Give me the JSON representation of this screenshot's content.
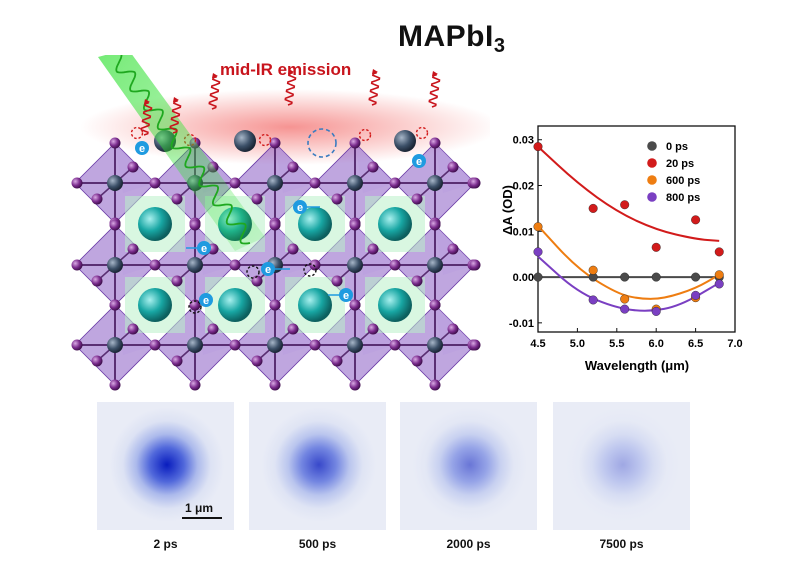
{
  "title": {
    "main": "MAPbI",
    "sub": "3"
  },
  "emission_label": "mid-IR emission",
  "electron_symbol": "e",
  "scale_bar_label": "1 μm",
  "images": [
    {
      "label": "2 ps",
      "intensity": 1.0
    },
    {
      "label": "500 ps",
      "intensity": 0.78
    },
    {
      "label": "2000 ps",
      "intensity": 0.55
    },
    {
      "label": "7500 ps",
      "intensity": 0.3
    }
  ],
  "colors": {
    "emission_red": "#c8141c",
    "pump_green": "#3ddc3d",
    "octahedra_purple": "#8a5cc4",
    "cation_teal": "#1aa3a0",
    "electron_blue": "#1f9be0",
    "spot_blue": "#1e2fc0"
  },
  "chart_data": {
    "type": "scatter",
    "xlabel": "Wavelength (μm)",
    "ylabel": "ΔA (OD)",
    "xlim": [
      4.5,
      7.0
    ],
    "ylim": [
      -0.012,
      0.033
    ],
    "xticks": [
      "4.5",
      "5.0",
      "5.5",
      "6.0",
      "6.5",
      "7.0"
    ],
    "yticks": [
      "0.03",
      "0.02",
      "0.01",
      "0.00",
      "-0.01"
    ],
    "legend_position": "top-right",
    "series": [
      {
        "name": "0 ps",
        "color": "#4a4a4a",
        "x": [
          4.5,
          5.2,
          5.6,
          6.0,
          6.5,
          6.8
        ],
        "y": [
          0.0,
          0.0,
          0.0,
          0.0,
          0.0,
          0.0
        ],
        "fit": [
          [
            4.5,
            0.0
          ],
          [
            6.8,
            0.0
          ]
        ]
      },
      {
        "name": "20 ps",
        "color": "#d21b1b",
        "x": [
          4.5,
          5.2,
          5.6,
          6.0,
          6.5,
          6.8
        ],
        "y": [
          0.0285,
          0.015,
          0.0158,
          0.0065,
          0.0125,
          0.0055
        ],
        "fit": [
          [
            4.5,
            0.0285
          ],
          [
            5.0,
            0.0205
          ],
          [
            5.5,
            0.0143
          ],
          [
            6.0,
            0.0103
          ],
          [
            6.5,
            0.0083
          ],
          [
            6.8,
            0.0079
          ]
        ]
      },
      {
        "name": "600 ps",
        "color": "#ee7d11",
        "x": [
          4.5,
          5.2,
          5.6,
          6.0,
          6.5,
          6.8
        ],
        "y": [
          0.011,
          0.0015,
          -0.0048,
          -0.007,
          -0.0045,
          0.0005
        ],
        "fit": [
          [
            4.5,
            0.0112
          ],
          [
            5.0,
            0.0018
          ],
          [
            5.5,
            -0.0036
          ],
          [
            5.8,
            -0.0048
          ],
          [
            6.1,
            -0.0047
          ],
          [
            6.5,
            -0.0025
          ],
          [
            6.8,
            0.0005
          ]
        ]
      },
      {
        "name": "800 ps",
        "color": "#7a3fc2",
        "x": [
          4.5,
          5.2,
          5.6,
          6.0,
          6.5,
          6.8
        ],
        "y": [
          0.0055,
          -0.005,
          -0.007,
          -0.0075,
          -0.004,
          -0.0015
        ],
        "fit": [
          [
            4.5,
            0.0045
          ],
          [
            5.0,
            -0.0033
          ],
          [
            5.5,
            -0.0068
          ],
          [
            5.9,
            -0.0076
          ],
          [
            6.3,
            -0.0063
          ],
          [
            6.8,
            -0.0013
          ]
        ]
      }
    ]
  }
}
